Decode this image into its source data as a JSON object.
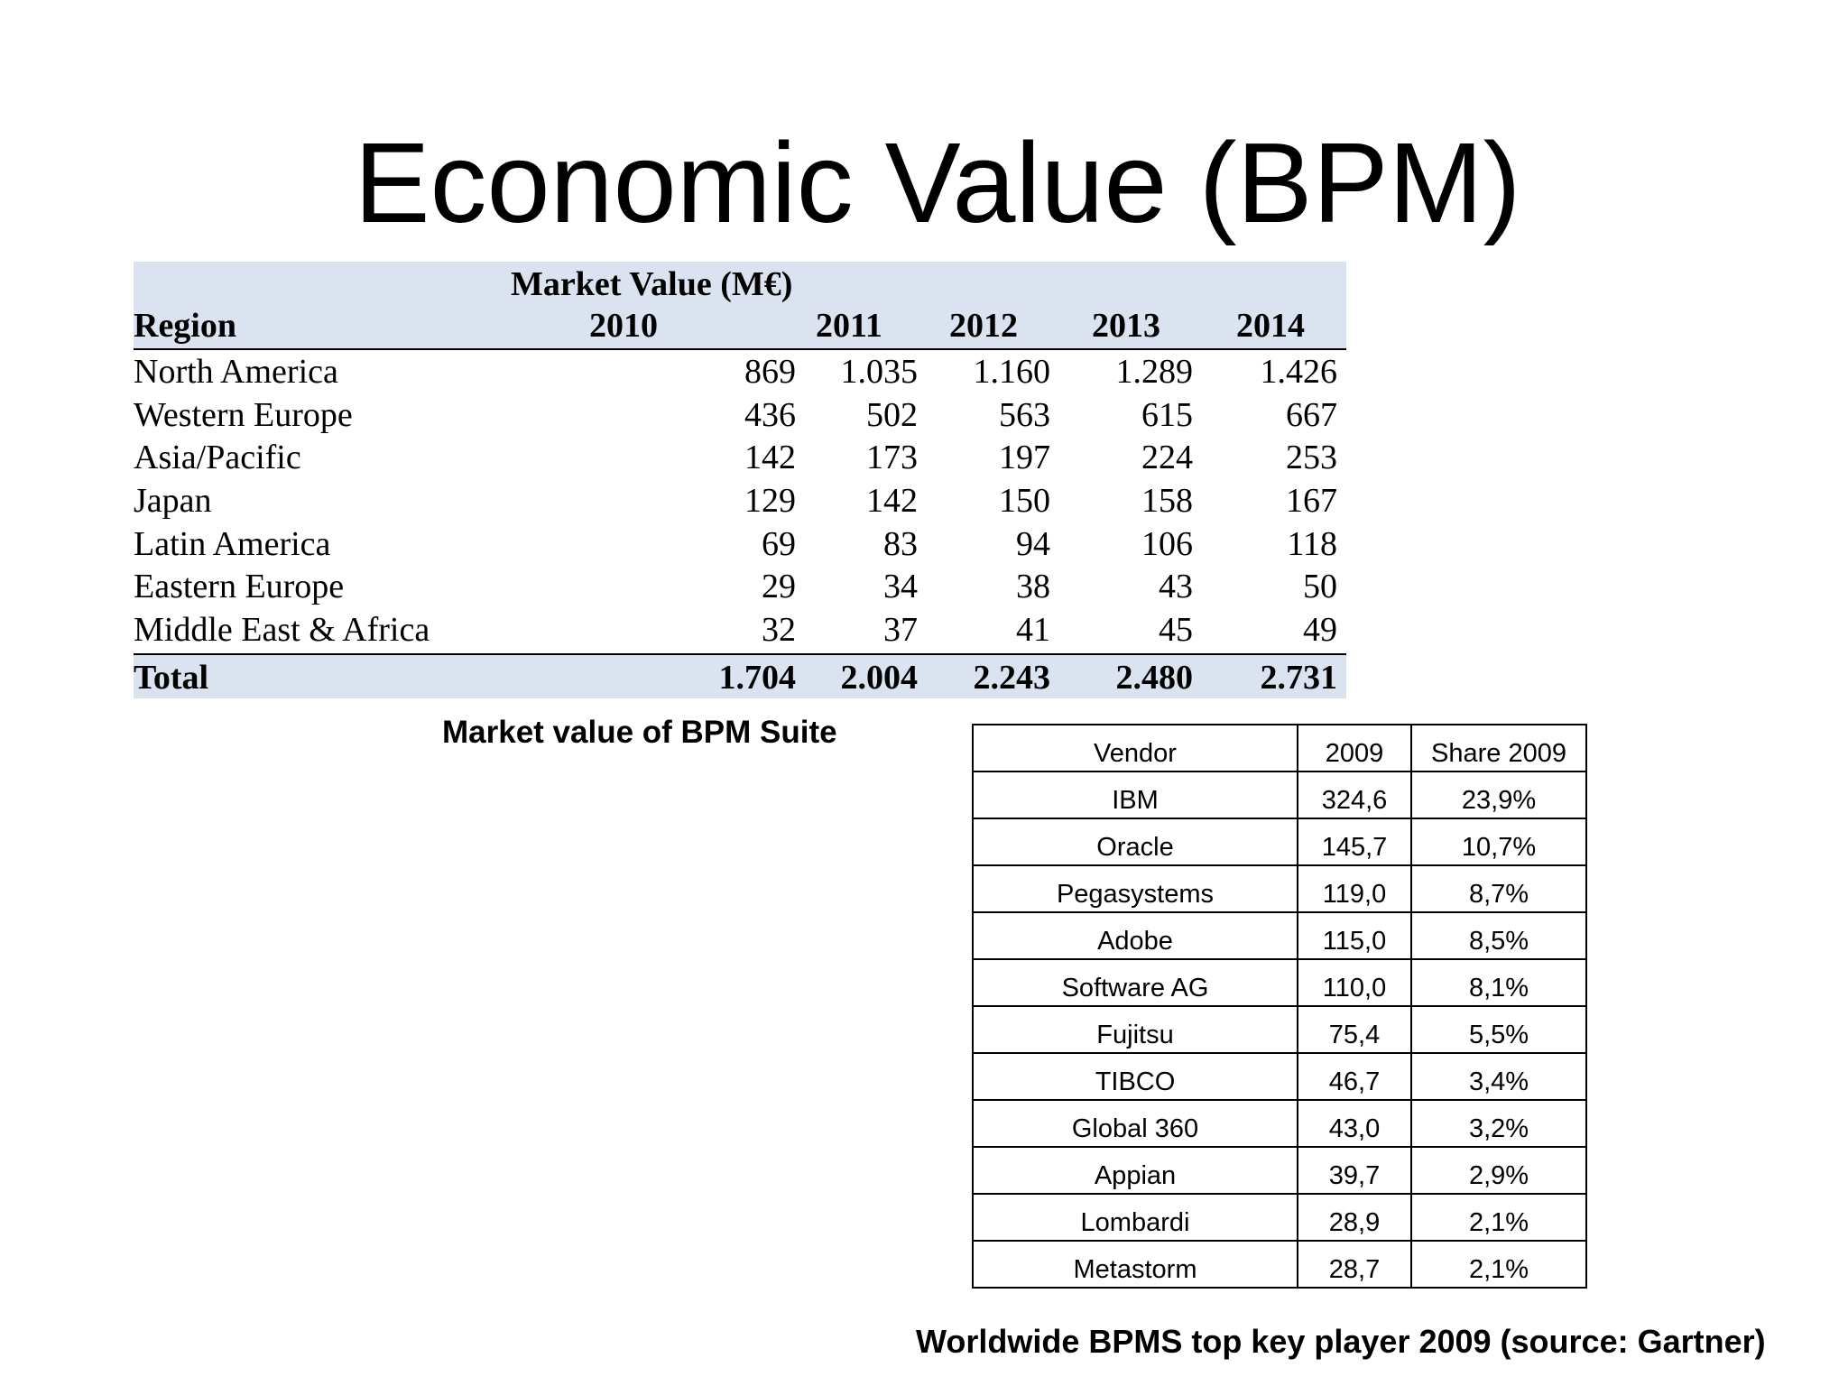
{
  "title": "Economic Value (BPM)",
  "market_table": {
    "caption": "Market Value  (M€)",
    "region_header": "Region",
    "years": [
      "2010",
      "2011",
      "2012",
      "2013",
      "2014"
    ],
    "rows": [
      {
        "region": "North America",
        "values": [
          "869",
          "1.035",
          "1.160",
          "1.289",
          "1.426"
        ]
      },
      {
        "region": "Western Europe",
        "values": [
          "436",
          "502",
          "563",
          "615",
          "667"
        ]
      },
      {
        "region": "Asia/Pacific",
        "values": [
          "142",
          "173",
          "197",
          "224",
          "253"
        ]
      },
      {
        "region": "Japan",
        "values": [
          "129",
          "142",
          "150",
          "158",
          "167"
        ]
      },
      {
        "region": "Latin America",
        "values": [
          "69",
          "83",
          "94",
          "106",
          "118"
        ]
      },
      {
        "region": "Eastern Europe",
        "values": [
          "29",
          "34",
          "38",
          "43",
          "50"
        ]
      },
      {
        "region": "Middle East & Africa",
        "values": [
          "32",
          "37",
          "41",
          "45",
          "49"
        ]
      }
    ],
    "total": {
      "label": "Total",
      "values": [
        "1.704",
        "2.004",
        "2.243",
        "2.480",
        "2.731"
      ]
    }
  },
  "market_caption": "Market value of  BPM Suite",
  "vendor_table": {
    "headers": [
      "Vendor",
      "2009",
      "Share 2009"
    ],
    "rows": [
      [
        "IBM",
        "324,6",
        "23,9%"
      ],
      [
        "Oracle",
        "145,7",
        "10,7%"
      ],
      [
        "Pegasystems",
        "119,0",
        "8,7%"
      ],
      [
        "Adobe",
        "115,0",
        "8,5%"
      ],
      [
        "Software AG",
        "110,0",
        "8,1%"
      ],
      [
        "Fujitsu",
        "75,4",
        "5,5%"
      ],
      [
        "TIBCO",
        "46,7",
        "3,4%"
      ],
      [
        "Global 360",
        "43,0",
        "3,2%"
      ],
      [
        "Appian",
        "39,7",
        "2,9%"
      ],
      [
        "Lombardi",
        "28,9",
        "2,1%"
      ],
      [
        "Metastorm",
        "28,7",
        "2,1%"
      ]
    ]
  },
  "vendor_caption": "Worldwide BPMS top key player 2009 (source: Gartner)"
}
